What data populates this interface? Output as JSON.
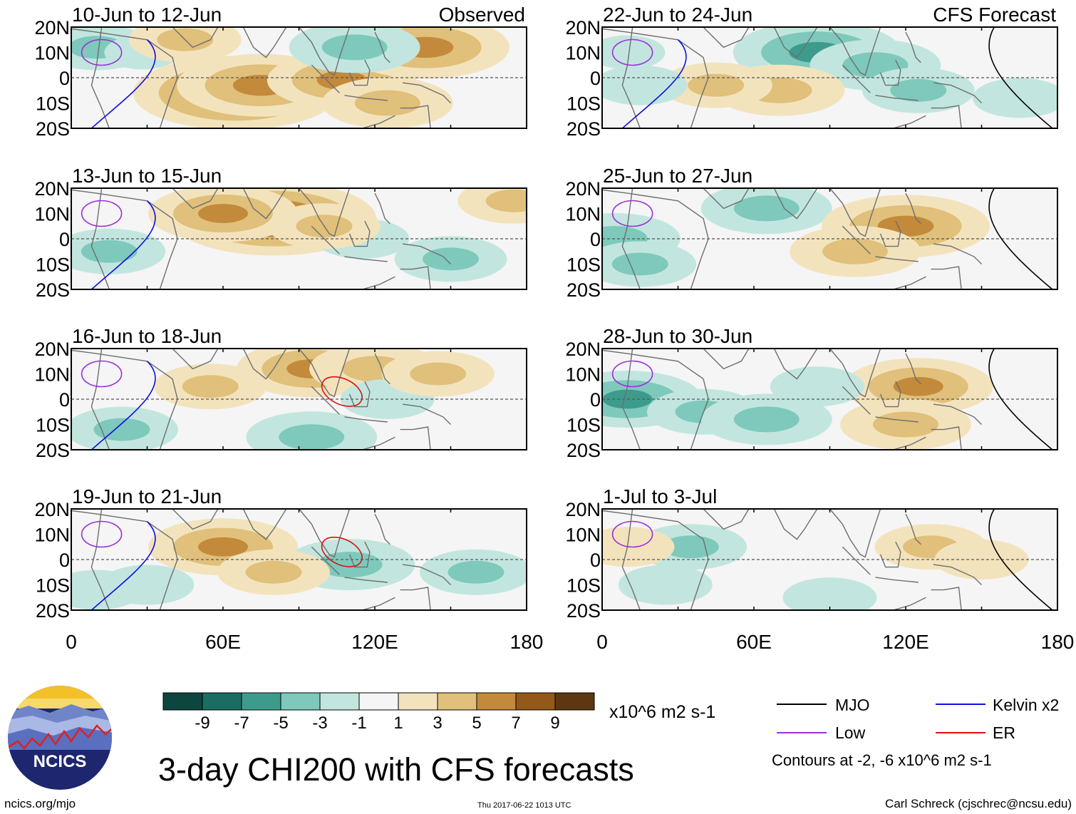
{
  "figure_title": "3-day CHI200 with CFS forecasts",
  "footer": {
    "url": "ncics.org/mjo",
    "timestamp": "Thu 2017-06-22 1013 UTC",
    "author": "Carl Schreck (cjschrec@ncsu.edu)",
    "logo_text": "NCICS"
  },
  "panels": [
    {
      "title": "10-Jun to 12-Jun",
      "tag": "Observed"
    },
    {
      "title": "22-Jun to 24-Jun",
      "tag": "CFS Forecast"
    },
    {
      "title": "13-Jun to 15-Jun",
      "tag": ""
    },
    {
      "title": "25-Jun to 27-Jun",
      "tag": ""
    },
    {
      "title": "16-Jun to 18-Jun",
      "tag": ""
    },
    {
      "title": "28-Jun to 30-Jun",
      "tag": ""
    },
    {
      "title": "19-Jun to 21-Jun",
      "tag": ""
    },
    {
      "title": "1-Jul to 3-Jul",
      "tag": ""
    }
  ],
  "legend": {
    "lines": [
      {
        "label": "MJO",
        "color": "#000000"
      },
      {
        "label": "Kelvin x2",
        "color": "#1010dd"
      },
      {
        "label": "Low",
        "color": "#9b30d9"
      },
      {
        "label": "ER",
        "color": "#dd1010"
      }
    ],
    "contour_note": "Contours at -2, -6 x10^6 m2 s-1"
  },
  "chart_data": {
    "type": "heatmap",
    "title": "3-day CHI200 with CFS forecasts",
    "variable": "CHI200",
    "units": "x10^6 m2 s-1",
    "x_ticks": [
      "0",
      "60E",
      "120E",
      "180"
    ],
    "y_ticks": [
      "20N",
      "10N",
      "0",
      "10S",
      "20S"
    ],
    "xlim": [
      0,
      180
    ],
    "ylim": [
      -20,
      20
    ],
    "colorbar_labels": [
      "-9",
      "-7",
      "-5",
      "-3",
      "-1",
      "1",
      "3",
      "5",
      "7",
      "9"
    ],
    "colorbar_colors": [
      "#0c463f",
      "#1a6d62",
      "#3d9b8d",
      "#7ec9bc",
      "#c2e6df",
      "#f5f5f5",
      "#f3e3bd",
      "#e0c07a",
      "#c28a3a",
      "#93581a",
      "#5e3610"
    ],
    "contour_levels": [
      -2,
      -6
    ],
    "fields": [
      [
        [
          65,
          -6,
          8
        ],
        [
          75,
          -3,
          6
        ],
        [
          107,
          -1,
          5
        ],
        [
          140,
          12,
          6
        ],
        [
          125,
          -10,
          4
        ],
        [
          10,
          12,
          -3
        ],
        [
          28,
          10,
          -1
        ],
        [
          112,
          12,
          -4
        ],
        [
          45,
          15,
          3
        ]
      ],
      [
        [
          85,
          10,
          -6
        ],
        [
          108,
          5,
          -4
        ],
        [
          125,
          -5,
          -3
        ],
        [
          70,
          -5,
          4
        ],
        [
          45,
          -3,
          3
        ],
        [
          15,
          -3,
          -2
        ],
        [
          165,
          -8,
          -2
        ],
        [
          10,
          10,
          -1
        ]
      ],
      [
        [
          80,
          8,
          8
        ],
        [
          60,
          10,
          5
        ],
        [
          115,
          0,
          -2
        ],
        [
          15,
          -5,
          -3
        ],
        [
          150,
          -8,
          -3
        ],
        [
          175,
          15,
          3
        ],
        [
          100,
          5,
          3
        ]
      ],
      [
        [
          65,
          12,
          -4
        ],
        [
          120,
          5,
          6
        ],
        [
          100,
          -5,
          4
        ],
        [
          5,
          0,
          -4
        ],
        [
          15,
          -10,
          -3
        ]
      ],
      [
        [
          95,
          12,
          5
        ],
        [
          120,
          12,
          4
        ],
        [
          20,
          -12,
          -3
        ],
        [
          95,
          -15,
          -4
        ],
        [
          125,
          0,
          -2
        ],
        [
          55,
          5,
          3
        ],
        [
          145,
          10,
          3
        ]
      ],
      [
        [
          10,
          0,
          -5
        ],
        [
          40,
          -5,
          -3
        ],
        [
          65,
          -8,
          -4
        ],
        [
          125,
          5,
          5
        ],
        [
          120,
          -10,
          4
        ],
        [
          85,
          5,
          -2
        ]
      ],
      [
        [
          60,
          5,
          5
        ],
        [
          110,
          -2,
          -4
        ],
        [
          30,
          -10,
          -2
        ],
        [
          80,
          -5,
          3
        ],
        [
          160,
          -5,
          -3
        ],
        [
          10,
          -12,
          -2
        ]
      ],
      [
        [
          35,
          5,
          -3
        ],
        [
          25,
          -10,
          -2
        ],
        [
          130,
          5,
          3
        ],
        [
          90,
          -15,
          -2
        ],
        [
          150,
          0,
          2
        ],
        [
          10,
          5,
          2
        ]
      ]
    ]
  }
}
